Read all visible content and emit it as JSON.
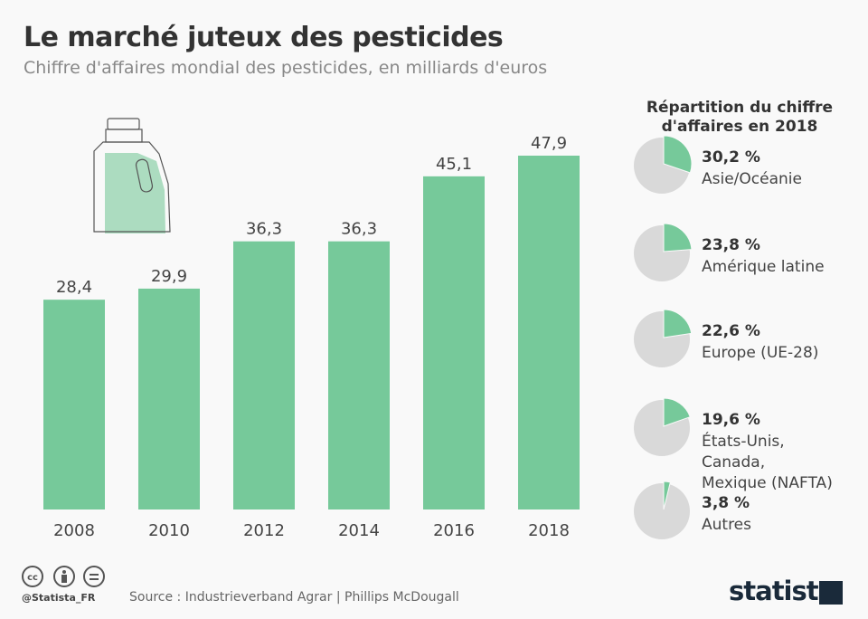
{
  "title": "Le marché juteux des pesticides",
  "subtitle": "Chiffre d'affaires mondial des pesticides, en milliards d'euros",
  "chart_data": [
    {
      "type": "bar",
      "categories": [
        "2008",
        "2010",
        "2012",
        "2014",
        "2016",
        "2018"
      ],
      "values": [
        28.4,
        29.9,
        36.3,
        36.3,
        45.1,
        47.9
      ],
      "labels": [
        "28,4",
        "29,9",
        "36,3",
        "36,3",
        "45,1",
        "47,9"
      ],
      "ylim": [
        0,
        47.9
      ],
      "color": "#76c99a",
      "grid": false
    },
    {
      "type": "pie",
      "title": "Répartition du chiffre d'affaires en 2018",
      "slices": [
        {
          "label": "Asie/Océanie",
          "value": 30.2,
          "value_label": "30,2 %"
        },
        {
          "label": "Amérique latine",
          "value": 23.8,
          "value_label": "23,8 %"
        },
        {
          "label": "Europe (UE-28)",
          "value": 22.6,
          "value_label": "22,6 %"
        },
        {
          "label": "États-Unis, Canada, Mexique (NAFTA)",
          "value": 19.6,
          "value_label": "19,6 %",
          "lines": [
            "États-Unis,",
            "Canada,",
            "Mexique (NAFTA)"
          ]
        },
        {
          "label": "Autres",
          "value": 3.8,
          "value_label": "3,8 %"
        }
      ],
      "highlight_color": "#76c99a",
      "rest_color": "#d9d9d9"
    }
  ],
  "footer": {
    "handle": "@Statista_FR",
    "source": "Source : Industrieverband Agrar | Phillips McDougall",
    "logo": "statista",
    "license_icons": [
      "cc-icon",
      "attribution-icon",
      "no-derivatives-icon"
    ]
  }
}
